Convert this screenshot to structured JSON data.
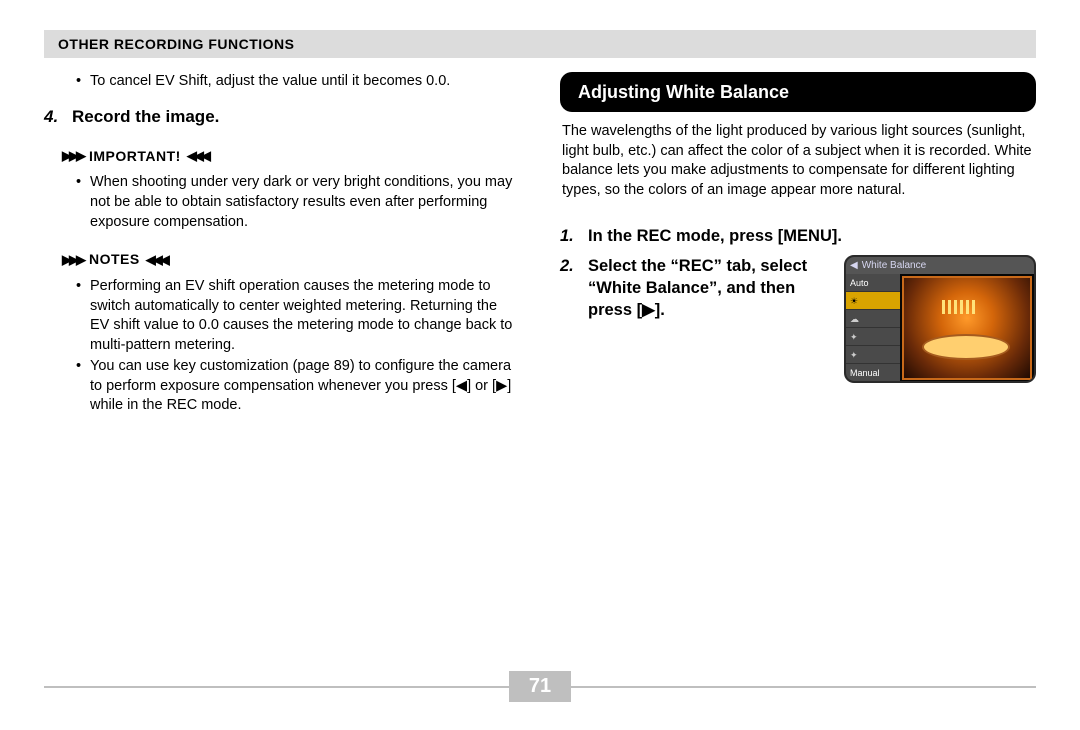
{
  "header": "Other Recording Functions",
  "left": {
    "cancel_bullet": "To cancel EV Shift, adjust the value until it becomes 0.0.",
    "step4_num": "4.",
    "step4_text": "Record the image.",
    "important_label": "Important!",
    "important_bullet": "When shooting under very dark or very bright conditions, you may not be able to obtain satisfactory results even after performing exposure compensation.",
    "notes_label": "Notes",
    "notes_bullets": [
      "Performing an EV shift operation causes the metering mode to switch automatically to center weighted metering. Returning the EV shift value to 0.0 causes the metering mode to change back to multi-pattern metering.",
      "You can use key customization (page 89) to configure the camera to perform exposure compensation whenever you press [◀] or [▶] while in the REC mode."
    ]
  },
  "right": {
    "section_title": "Adjusting White Balance",
    "intro": "The wavelengths of the light produced by various light sources (sunlight, light bulb, etc.) can affect the color of a subject when it is recorded. White balance lets you make adjustments to compensate for different lighting types, so the colors of an image appear more natural.",
    "step1_num": "1.",
    "step1_text": "In the REC mode, press [MENU].",
    "step2_num": "2.",
    "step2_text": "Select the “REC” tab, select “White Balance”, and then press [▶].",
    "wb_title": "White Balance",
    "wb_items": [
      "Auto",
      "☀",
      "☁",
      "✦",
      "✦",
      "Manual"
    ],
    "wb_selected_index": 1
  },
  "page_number": "71",
  "colors": {
    "header_bg": "#dcdcdc",
    "pill_bg": "#000000",
    "pill_fg": "#ffffff",
    "rule": "#bfbfbf",
    "pagenum_bg": "#bfbfbf",
    "pagenum_fg": "#ffffff",
    "wb_sel_bg": "#d9a400"
  }
}
